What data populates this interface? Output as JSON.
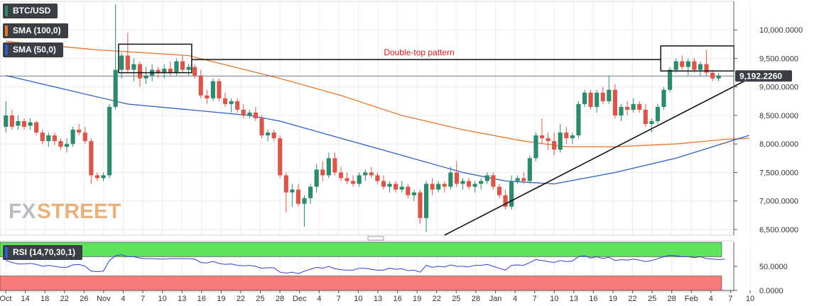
{
  "chart_data": [
    {
      "type": "candlestick",
      "pair": "BTC/USD",
      "legend": [
        {
          "label": "BTC/USD",
          "color": "#3b3f45"
        },
        {
          "label": "SMA (100,0)",
          "color": "#e8772e"
        },
        {
          "label": "SMA (50,0)",
          "color": "#2f5fc4"
        }
      ],
      "y_ticks": [
        "10,000.0000",
        "9,500.0000",
        "9,000.0000",
        "8,500.0000",
        "8,000.0000",
        "7,500.0000",
        "7,000.0000",
        "6,500.0000"
      ],
      "y_tick_values": [
        10000,
        9500,
        9000,
        8500,
        8000,
        7500,
        7000,
        6500
      ],
      "ylim": [
        6400,
        10500
      ],
      "x_ticks": [
        "Oct",
        "14",
        "18",
        "22",
        "26",
        "Nov",
        "4",
        "7",
        "10",
        "13",
        "16",
        "19",
        "22",
        "25",
        "28",
        "Dec",
        "4",
        "7",
        "10",
        "13",
        "16",
        "19",
        "22",
        "25",
        "28",
        "Jan",
        "4",
        "7",
        "10",
        "13",
        "16",
        "19",
        "22",
        "25",
        "28",
        "Feb",
        "4",
        "7",
        "10"
      ],
      "current_price": 9192.226,
      "current_price_label": "9,192.2260",
      "annotation": "Double-top pattern",
      "up_color": "#2d8a6d",
      "down_color": "#d9574a",
      "candles": [
        {
          "o": 8300,
          "h": 8750,
          "l": 8200,
          "c": 8500
        },
        {
          "o": 8500,
          "h": 8600,
          "l": 8250,
          "c": 8300
        },
        {
          "o": 8320,
          "h": 8500,
          "l": 8250,
          "c": 8400
        },
        {
          "o": 8400,
          "h": 8450,
          "l": 8250,
          "c": 8300
        },
        {
          "o": 8320,
          "h": 8450,
          "l": 8250,
          "c": 8380
        },
        {
          "o": 8380,
          "h": 8400,
          "l": 8150,
          "c": 8200
        },
        {
          "o": 8200,
          "h": 8260,
          "l": 8000,
          "c": 8050
        },
        {
          "o": 8050,
          "h": 8200,
          "l": 7950,
          "c": 8150
        },
        {
          "o": 8150,
          "h": 8200,
          "l": 7980,
          "c": 8050
        },
        {
          "o": 8050,
          "h": 8100,
          "l": 7900,
          "c": 7950
        },
        {
          "o": 7950,
          "h": 8100,
          "l": 7850,
          "c": 8000
        },
        {
          "o": 8000,
          "h": 8300,
          "l": 7950,
          "c": 8250
        },
        {
          "o": 8250,
          "h": 8350,
          "l": 8150,
          "c": 8200
        },
        {
          "o": 8200,
          "h": 8300,
          "l": 8000,
          "c": 8050
        },
        {
          "o": 8050,
          "h": 8100,
          "l": 7300,
          "c": 7450
        },
        {
          "o": 7450,
          "h": 7500,
          "l": 7350,
          "c": 7400
        },
        {
          "o": 7400,
          "h": 7500,
          "l": 7350,
          "c": 7450
        },
        {
          "o": 7450,
          "h": 8700,
          "l": 7400,
          "c": 8650
        },
        {
          "o": 8650,
          "h": 10450,
          "l": 8600,
          "c": 9300
        },
        {
          "o": 9300,
          "h": 9600,
          "l": 9150,
          "c": 9550
        },
        {
          "o": 9550,
          "h": 9950,
          "l": 9250,
          "c": 9300
        },
        {
          "o": 9300,
          "h": 9500,
          "l": 9100,
          "c": 9400
        },
        {
          "o": 9400,
          "h": 9450,
          "l": 9000,
          "c": 9150
        },
        {
          "o": 9150,
          "h": 9350,
          "l": 9050,
          "c": 9200
        },
        {
          "o": 9200,
          "h": 9400,
          "l": 9100,
          "c": 9300
        },
        {
          "o": 9300,
          "h": 9350,
          "l": 9150,
          "c": 9250
        },
        {
          "o": 9250,
          "h": 9400,
          "l": 9150,
          "c": 9320
        },
        {
          "o": 9320,
          "h": 9450,
          "l": 9200,
          "c": 9250
        },
        {
          "o": 9250,
          "h": 9500,
          "l": 9200,
          "c": 9450
        },
        {
          "o": 9450,
          "h": 9550,
          "l": 9250,
          "c": 9300
        },
        {
          "o": 9300,
          "h": 9400,
          "l": 9200,
          "c": 9350
        },
        {
          "o": 9350,
          "h": 9400,
          "l": 9150,
          "c": 9200
        },
        {
          "o": 9200,
          "h": 9300,
          "l": 8800,
          "c": 8850
        },
        {
          "o": 8850,
          "h": 8950,
          "l": 8700,
          "c": 8800
        },
        {
          "o": 8800,
          "h": 9150,
          "l": 8750,
          "c": 9100
        },
        {
          "o": 9100,
          "h": 9150,
          "l": 8750,
          "c": 8800
        },
        {
          "o": 8800,
          "h": 8900,
          "l": 8650,
          "c": 8700
        },
        {
          "o": 8700,
          "h": 8800,
          "l": 8550,
          "c": 8750
        },
        {
          "o": 8750,
          "h": 8800,
          "l": 8550,
          "c": 8600
        },
        {
          "o": 8600,
          "h": 8700,
          "l": 8450,
          "c": 8500
        },
        {
          "o": 8500,
          "h": 8600,
          "l": 8450,
          "c": 8550
        },
        {
          "o": 8550,
          "h": 8650,
          "l": 8400,
          "c": 8450
        },
        {
          "o": 8450,
          "h": 8500,
          "l": 8100,
          "c": 8150
        },
        {
          "o": 8150,
          "h": 8250,
          "l": 8050,
          "c": 8200
        },
        {
          "o": 8200,
          "h": 8250,
          "l": 8050,
          "c": 8100
        },
        {
          "o": 8100,
          "h": 8150,
          "l": 7400,
          "c": 7450
        },
        {
          "o": 7450,
          "h": 7500,
          "l": 6800,
          "c": 7150
        },
        {
          "o": 7150,
          "h": 7300,
          "l": 6900,
          "c": 7200
        },
        {
          "o": 7200,
          "h": 7300,
          "l": 6900,
          "c": 6950
        },
        {
          "o": 6950,
          "h": 7100,
          "l": 6550,
          "c": 7050
        },
        {
          "o": 7050,
          "h": 7300,
          "l": 6950,
          "c": 7250
        },
        {
          "o": 7250,
          "h": 7650,
          "l": 7150,
          "c": 7550
        },
        {
          "o": 7550,
          "h": 7700,
          "l": 7350,
          "c": 7450
        },
        {
          "o": 7450,
          "h": 7850,
          "l": 7400,
          "c": 7750
        },
        {
          "o": 7750,
          "h": 7850,
          "l": 7450,
          "c": 7500
        },
        {
          "o": 7500,
          "h": 7600,
          "l": 7350,
          "c": 7400
        },
        {
          "o": 7400,
          "h": 7500,
          "l": 7300,
          "c": 7350
        },
        {
          "o": 7350,
          "h": 7450,
          "l": 7250,
          "c": 7300
        },
        {
          "o": 7300,
          "h": 7500,
          "l": 7250,
          "c": 7450
        },
        {
          "o": 7450,
          "h": 7550,
          "l": 7350,
          "c": 7500
        },
        {
          "o": 7500,
          "h": 7600,
          "l": 7400,
          "c": 7450
        },
        {
          "o": 7450,
          "h": 7500,
          "l": 7300,
          "c": 7350
        },
        {
          "o": 7350,
          "h": 7450,
          "l": 7200,
          "c": 7250
        },
        {
          "o": 7250,
          "h": 7350,
          "l": 7150,
          "c": 7300
        },
        {
          "o": 7300,
          "h": 7350,
          "l": 7150,
          "c": 7200
        },
        {
          "o": 7200,
          "h": 7350,
          "l": 7150,
          "c": 7250
        },
        {
          "o": 7250,
          "h": 7300,
          "l": 7050,
          "c": 7100
        },
        {
          "o": 7100,
          "h": 7200,
          "l": 7000,
          "c": 7150
        },
        {
          "o": 7150,
          "h": 7200,
          "l": 6600,
          "c": 6700
        },
        {
          "o": 6700,
          "h": 7350,
          "l": 6450,
          "c": 7300
        },
        {
          "o": 7300,
          "h": 7400,
          "l": 7100,
          "c": 7200
        },
        {
          "o": 7200,
          "h": 7350,
          "l": 7150,
          "c": 7300
        },
        {
          "o": 7300,
          "h": 7350,
          "l": 7150,
          "c": 7250
        },
        {
          "o": 7250,
          "h": 7600,
          "l": 7200,
          "c": 7500
        },
        {
          "o": 7500,
          "h": 7700,
          "l": 7250,
          "c": 7300
        },
        {
          "o": 7300,
          "h": 7400,
          "l": 7200,
          "c": 7350
        },
        {
          "o": 7350,
          "h": 7400,
          "l": 7200,
          "c": 7250
        },
        {
          "o": 7250,
          "h": 7350,
          "l": 7150,
          "c": 7300
        },
        {
          "o": 7300,
          "h": 7400,
          "l": 7200,
          "c": 7350
        },
        {
          "o": 7350,
          "h": 7500,
          "l": 7300,
          "c": 7450
        },
        {
          "o": 7450,
          "h": 7500,
          "l": 7200,
          "c": 7250
        },
        {
          "o": 7250,
          "h": 7300,
          "l": 7050,
          "c": 7100
        },
        {
          "o": 7100,
          "h": 7200,
          "l": 6850,
          "c": 6900
        },
        {
          "o": 6900,
          "h": 7450,
          "l": 6850,
          "c": 7350
        },
        {
          "o": 7350,
          "h": 7450,
          "l": 7300,
          "c": 7400
        },
        {
          "o": 7400,
          "h": 7500,
          "l": 7300,
          "c": 7350
        },
        {
          "o": 7350,
          "h": 7800,
          "l": 7300,
          "c": 7750
        },
        {
          "o": 7750,
          "h": 8200,
          "l": 7700,
          "c": 8150
        },
        {
          "o": 8150,
          "h": 8450,
          "l": 8000,
          "c": 8100
        },
        {
          "o": 8100,
          "h": 8200,
          "l": 7900,
          "c": 8050
        },
        {
          "o": 8050,
          "h": 8200,
          "l": 7800,
          "c": 7900
        },
        {
          "o": 7900,
          "h": 8350,
          "l": 7850,
          "c": 8200
        },
        {
          "o": 8200,
          "h": 8300,
          "l": 8000,
          "c": 8100
        },
        {
          "o": 8100,
          "h": 8200,
          "l": 8000,
          "c": 8150
        },
        {
          "o": 8150,
          "h": 8750,
          "l": 8100,
          "c": 8700
        },
        {
          "o": 8700,
          "h": 8950,
          "l": 8650,
          "c": 8900
        },
        {
          "o": 8900,
          "h": 8950,
          "l": 8600,
          "c": 8650
        },
        {
          "o": 8650,
          "h": 8950,
          "l": 8550,
          "c": 8900
        },
        {
          "o": 8900,
          "h": 9000,
          "l": 8700,
          "c": 8750
        },
        {
          "o": 8750,
          "h": 9200,
          "l": 8700,
          "c": 8950
        },
        {
          "o": 8950,
          "h": 9050,
          "l": 8450,
          "c": 8500
        },
        {
          "o": 8500,
          "h": 8700,
          "l": 8400,
          "c": 8650
        },
        {
          "o": 8650,
          "h": 8750,
          "l": 8500,
          "c": 8600
        },
        {
          "o": 8600,
          "h": 8800,
          "l": 8550,
          "c": 8700
        },
        {
          "o": 8700,
          "h": 8750,
          "l": 8550,
          "c": 8600
        },
        {
          "o": 8600,
          "h": 8700,
          "l": 8300,
          "c": 8350
        },
        {
          "o": 8350,
          "h": 8450,
          "l": 8200,
          "c": 8400
        },
        {
          "o": 8400,
          "h": 8700,
          "l": 8350,
          "c": 8650
        },
        {
          "o": 8650,
          "h": 9000,
          "l": 8600,
          "c": 8950
        },
        {
          "o": 8950,
          "h": 9350,
          "l": 8900,
          "c": 9300
        },
        {
          "o": 9300,
          "h": 9500,
          "l": 9250,
          "c": 9450
        },
        {
          "o": 9450,
          "h": 9550,
          "l": 9300,
          "c": 9350
        },
        {
          "o": 9350,
          "h": 9500,
          "l": 9200,
          "c": 9450
        },
        {
          "o": 9450,
          "h": 9500,
          "l": 9250,
          "c": 9300
        },
        {
          "o": 9300,
          "h": 9450,
          "l": 9200,
          "c": 9400
        },
        {
          "o": 9400,
          "h": 9650,
          "l": 9200,
          "c": 9250
        },
        {
          "o": 9250,
          "h": 9300,
          "l": 9100,
          "c": 9150
        },
        {
          "o": 9150,
          "h": 9250,
          "l": 9100,
          "c": 9200
        }
      ],
      "sma100": [
        [
          0,
          9800
        ],
        [
          15,
          9650
        ],
        [
          30,
          9550
        ],
        [
          45,
          9150
        ],
        [
          55,
          8850
        ],
        [
          65,
          8500
        ],
        [
          75,
          8250
        ],
        [
          85,
          8050
        ],
        [
          92,
          7950
        ],
        [
          100,
          7950
        ],
        [
          110,
          8000
        ],
        [
          118,
          8080
        ],
        [
          122,
          8100
        ]
      ],
      "sma50": [
        [
          0,
          9200
        ],
        [
          10,
          8950
        ],
        [
          20,
          8700
        ],
        [
          30,
          8600
        ],
        [
          40,
          8500
        ],
        [
          45,
          8400
        ],
        [
          55,
          8100
        ],
        [
          65,
          7800
        ],
        [
          75,
          7500
        ],
        [
          82,
          7350
        ],
        [
          90,
          7300
        ],
        [
          100,
          7500
        ],
        [
          110,
          7750
        ],
        [
          116,
          7950
        ],
        [
          122,
          8150
        ]
      ],
      "trendline": [
        [
          72,
          6400
        ],
        [
          123,
          9200
        ]
      ],
      "box1": {
        "i0": 19,
        "i1": 30,
        "hi": 9750,
        "lo": 9250
      },
      "box2": {
        "i0": 108,
        "i1": 119,
        "hi": 9720,
        "lo": 9280
      },
      "neckline_y": 9480
    },
    {
      "type": "line",
      "indicator": "RSI",
      "label": "RSI (14,70,30,1)",
      "y_ticks": [
        "50.0000",
        "0.0000"
      ],
      "y_tick_values": [
        50,
        0
      ],
      "ylim": [
        0,
        100
      ],
      "overbought": 70,
      "oversold": 30,
      "band_top_color": "#5ee35e",
      "band_bottom_color": "#f77b7b",
      "series": [
        {
          "values": [
            62,
            58,
            55,
            55,
            56,
            54,
            50,
            52,
            50,
            48,
            48,
            53,
            54,
            50,
            40,
            39,
            40,
            62,
            72,
            74,
            70,
            70,
            67,
            66,
            66,
            65,
            65,
            66,
            66,
            66,
            66,
            65,
            58,
            57,
            60,
            56,
            54,
            55,
            52,
            51,
            52,
            50,
            46,
            47,
            47,
            38,
            36,
            38,
            35,
            40,
            44,
            48,
            46,
            50,
            45,
            43,
            42,
            42,
            46,
            46,
            44,
            42,
            42,
            46,
            44,
            45,
            41,
            42,
            38,
            52,
            48,
            50,
            49,
            53,
            50,
            50,
            49,
            52,
            52,
            54,
            50,
            46,
            42,
            52,
            53,
            52,
            58,
            64,
            62,
            60,
            58,
            62,
            60,
            61,
            70,
            72,
            67,
            70,
            66,
            69,
            62,
            64,
            63,
            65,
            63,
            60,
            62,
            66,
            70,
            73,
            72,
            70,
            70,
            68,
            70,
            66,
            65,
            64,
            65
          ]
        }
      ]
    }
  ]
}
